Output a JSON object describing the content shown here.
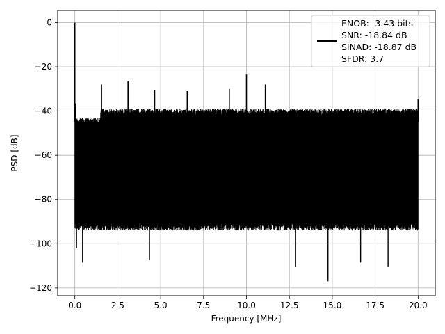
{
  "chart_data": {
    "type": "line",
    "title": "",
    "xlabel": "Frequency [MHz]",
    "ylabel": "PSD [dB]",
    "xlim": [
      -1.0,
      21.0
    ],
    "ylim": [
      -123.5,
      5.5
    ],
    "xticks": [
      0.0,
      2.5,
      5.0,
      7.5,
      10.0,
      12.5,
      15.0,
      17.5,
      20.0
    ],
    "xtick_labels": [
      "0.0",
      "2.5",
      "5.0",
      "7.5",
      "10.0",
      "12.5",
      "15.0",
      "17.5",
      "20.0"
    ],
    "yticks": [
      0,
      -20,
      -40,
      -60,
      -80,
      -100,
      -120
    ],
    "ytick_labels": [
      "0",
      "−20",
      "−40",
      "−60",
      "−80",
      "−100",
      "−120"
    ],
    "grid": true,
    "legend_position": "top-right",
    "legend": [
      "ENOB: -3.43 bits",
      "SNR: -18.84 dB",
      "SINAD: -18.87 dB",
      "SFDR: 3.7"
    ],
    "series": [
      {
        "color": "#000000",
        "x_range": [
          0.0,
          20.0
        ],
        "noise_band_upper_approx": -39,
        "noise_band_lower_approx": -92,
        "dense_noise_floor": true,
        "peaks": [
          {
            "x": 0.0,
            "y": 0.0
          },
          {
            "x": 0.05,
            "y": -36.5
          },
          {
            "x": 1.55,
            "y": -28.0
          },
          {
            "x": 3.1,
            "y": -26.5
          },
          {
            "x": 4.65,
            "y": -30.5
          },
          {
            "x": 6.55,
            "y": -31.0
          },
          {
            "x": 9.0,
            "y": -30.0
          },
          {
            "x": 10.0,
            "y": -23.5
          },
          {
            "x": 11.1,
            "y": -28.0
          },
          {
            "x": 20.0,
            "y": -34.5
          }
        ],
        "dips": [
          {
            "x": 0.1,
            "y": -102.0
          },
          {
            "x": 0.45,
            "y": -108.5
          },
          {
            "x": 4.35,
            "y": -107.5
          },
          {
            "x": 12.85,
            "y": -110.5
          },
          {
            "x": 14.75,
            "y": -117.0
          },
          {
            "x": 16.65,
            "y": -108.5
          },
          {
            "x": 18.25,
            "y": -110.5
          }
        ]
      }
    ]
  }
}
